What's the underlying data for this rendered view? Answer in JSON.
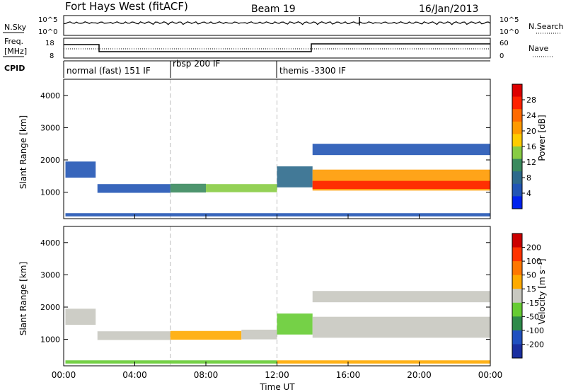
{
  "header": {
    "radar": "Fort Hays West (fitACF)",
    "beam": "Beam 19",
    "date": "16/Jan/2013"
  },
  "noise_panel": {
    "left_label": "N.Sky",
    "right_label": "N.Search",
    "left_ticks": [
      "10^5",
      "10^0"
    ],
    "right_ticks": [
      "10^5",
      "10^0"
    ]
  },
  "freq_panel": {
    "left_label_1": "Freq.",
    "left_label_2": "[MHz]",
    "right_label": "Nave",
    "left_ticks": [
      "18",
      "8"
    ],
    "right_ticks": [
      "60",
      "0"
    ]
  },
  "cpid_panel": {
    "label": "CPID",
    "modes": [
      {
        "text": "normal (fast) 151 IF",
        "start_h": 0
      },
      {
        "text": "rbsp 200 IF",
        "start_h": 6
      },
      {
        "text": "themis -3300 IF",
        "start_h": 12
      }
    ]
  },
  "chart_data": [
    {
      "type": "heatmap",
      "name": "Power",
      "ylabel": "Slant Range [km]",
      "ylim": [
        180,
        4500
      ],
      "yticks": [
        "1000",
        "2000",
        "3000",
        "4000"
      ],
      "colorbar_label": "Power [dB]",
      "colorbar_ticks": [
        "4",
        "8",
        "12",
        "16",
        "20",
        "24",
        "28"
      ],
      "colorbar_colors": [
        "#0022ee",
        "#2255b5",
        "#2e6a8c",
        "#3a8a5e",
        "#88cc44",
        "#ffcc00",
        "#ff9a00",
        "#ff6a00",
        "#ff2200",
        "#dd0000"
      ],
      "bands": [
        {
          "t0": 0.1,
          "t1": 1.8,
          "r0": 1450,
          "r1": 1950,
          "color": "#2255b5"
        },
        {
          "t0": 1.9,
          "t1": 6,
          "r0": 980,
          "r1": 1250,
          "color": "#2255b5"
        },
        {
          "t0": 6,
          "t1": 8,
          "r0": 990,
          "r1": 1260,
          "color": "#3a8a5e"
        },
        {
          "t0": 8,
          "t1": 12,
          "r0": 1000,
          "r1": 1250,
          "color": "#88cc44"
        },
        {
          "t0": 12,
          "t1": 14,
          "r0": 1150,
          "r1": 1800,
          "color": "#2e6a8c"
        },
        {
          "t0": 14,
          "t1": 24,
          "r0": 1050,
          "r1": 1700,
          "color": "#ff9a00"
        },
        {
          "t0": 14,
          "t1": 24,
          "r0": 1100,
          "r1": 1350,
          "color": "#ff2200"
        },
        {
          "t0": 14,
          "t1": 24,
          "r0": 2150,
          "r1": 2500,
          "color": "#2255b5"
        },
        {
          "t0": 0.1,
          "t1": 24,
          "r0": 250,
          "r1": 350,
          "color": "#2255b5"
        }
      ]
    },
    {
      "type": "heatmap",
      "name": "Velocity",
      "ylabel": "Slant Range [km]",
      "xlabel": "Time UT",
      "xlim": [
        0,
        24
      ],
      "xticks": [
        "00:00",
        "04:00",
        "08:00",
        "12:00",
        "16:00",
        "20:00",
        "00:00"
      ],
      "ylim": [
        180,
        4500
      ],
      "yticks": [
        "1000",
        "2000",
        "3000",
        "4000"
      ],
      "colorbar_label": "Velocity [m s⁻¹]",
      "colorbar_ticks": [
        "200",
        "100",
        "50",
        "15",
        "-15",
        "-50",
        "-100",
        "-200"
      ],
      "colorbar_colors": [
        "#1a2fa0",
        "#2050c0",
        "#2e8a4a",
        "#66cc33",
        "#c8c8c0",
        "#ffaa00",
        "#ff7700",
        "#ff3300",
        "#cc0000"
      ],
      "bands": [
        {
          "t0": 0.1,
          "t1": 1.8,
          "r0": 1450,
          "r1": 1950,
          "color": "#c8c8c0"
        },
        {
          "t0": 1.9,
          "t1": 6,
          "r0": 980,
          "r1": 1250,
          "color": "#c8c8c0"
        },
        {
          "t0": 6,
          "t1": 10,
          "r0": 990,
          "r1": 1260,
          "color": "#ffaa00"
        },
        {
          "t0": 10,
          "t1": 12,
          "r0": 1000,
          "r1": 1300,
          "color": "#c8c8c0"
        },
        {
          "t0": 12,
          "t1": 14,
          "r0": 1150,
          "r1": 1800,
          "color": "#66cc33"
        },
        {
          "t0": 14,
          "t1": 24,
          "r0": 1050,
          "r1": 1700,
          "color": "#c8c8c0"
        },
        {
          "t0": 14,
          "t1": 24,
          "r0": 2150,
          "r1": 2500,
          "color": "#c8c8c0"
        },
        {
          "t0": 0.1,
          "t1": 12,
          "r0": 250,
          "r1": 350,
          "color": "#66cc33"
        },
        {
          "t0": 12,
          "t1": 24,
          "r0": 250,
          "r1": 350,
          "color": "#ffaa00"
        }
      ]
    }
  ]
}
